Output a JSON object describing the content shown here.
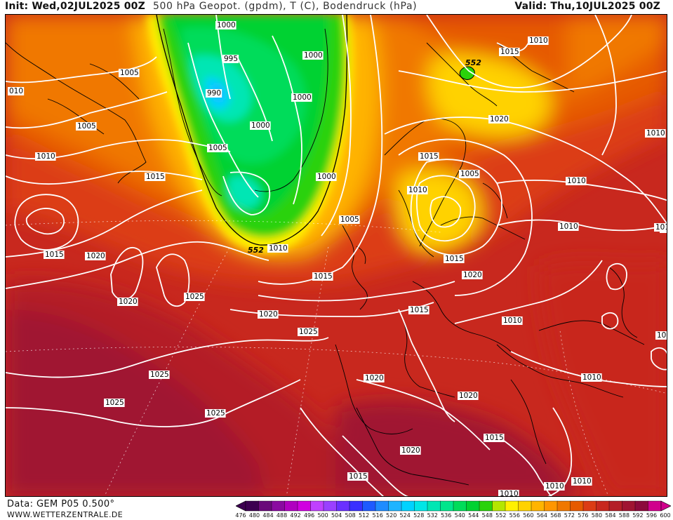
{
  "header": {
    "init": "Init: Wed,02JUL2025 00Z",
    "title": "500 hPa Geopot. (gpdm), T (C), Bodendruck (hPa)",
    "valid": "Valid: Thu,10JUL2025 00Z"
  },
  "footer": {
    "data_source": "Data: GEM P05 0.500°",
    "website": "WWW.WETTERZENTRALE.DE"
  },
  "legend": {
    "ticks": [
      "476",
      "480",
      "484",
      "488",
      "492",
      "496",
      "500",
      "504",
      "508",
      "512",
      "516",
      "520",
      "524",
      "528",
      "532",
      "536",
      "540",
      "544",
      "548",
      "552",
      "556",
      "560",
      "564",
      "568",
      "572",
      "576",
      "580",
      "584",
      "588",
      "592",
      "596",
      "600"
    ],
    "colors": [
      "#3c0050",
      "#6a0a7a",
      "#8a0aa0",
      "#b000c0",
      "#d000e0",
      "#c040ff",
      "#9a40ff",
      "#6a30ff",
      "#3a30ff",
      "#1e5aff",
      "#1e8cff",
      "#1eb4ff",
      "#00d2ff",
      "#00e6e6",
      "#00e6b4",
      "#00e68c",
      "#00dc5a",
      "#00d232",
      "#2ad20a",
      "#b4e600",
      "#fff000",
      "#ffd200",
      "#ffb400",
      "#ff9600",
      "#f07800",
      "#e65a00",
      "#dc3c14",
      "#c8281e",
      "#b41e28",
      "#a01432",
      "#8c0a3c",
      "#d0008c"
    ]
  },
  "isobar_labels": [
    {
      "t": "1000"
    },
    {
      "t": "995"
    },
    {
      "t": "990"
    },
    {
      "t": "1000"
    },
    {
      "t": "1000"
    },
    {
      "t": "1000"
    },
    {
      "t": "1005"
    },
    {
      "t": "1005"
    },
    {
      "t": "010"
    },
    {
      "t": "1005"
    },
    {
      "t": "1010"
    },
    {
      "t": "1015"
    },
    {
      "t": "1000"
    },
    {
      "t": "1005"
    },
    {
      "t": "552"
    },
    {
      "t": "1010"
    },
    {
      "t": "1015"
    },
    {
      "t": "1020"
    },
    {
      "t": "1025"
    },
    {
      "t": "1020"
    },
    {
      "t": "1020"
    },
    {
      "t": "1025"
    },
    {
      "t": "1025"
    },
    {
      "t": "1025"
    },
    {
      "t": "1025"
    },
    {
      "t": "1015"
    },
    {
      "t": "1010"
    },
    {
      "t": "552"
    },
    {
      "t": "1015"
    },
    {
      "t": "1020"
    },
    {
      "t": "1010"
    },
    {
      "t": "1015"
    },
    {
      "t": "1005"
    },
    {
      "t": "1010"
    },
    {
      "t": "1010"
    },
    {
      "t": "1015"
    },
    {
      "t": "1020"
    },
    {
      "t": "1015"
    },
    {
      "t": "1010"
    },
    {
      "t": "1015"
    },
    {
      "t": "1010"
    },
    {
      "t": "1010"
    },
    {
      "t": "1020"
    },
    {
      "t": "1020"
    },
    {
      "t": "1020"
    },
    {
      "t": "1015"
    },
    {
      "t": "1015"
    },
    {
      "t": "1010"
    },
    {
      "t": "1010"
    },
    {
      "t": "1010"
    },
    {
      "t": "1010"
    },
    {
      "t": "1010"
    }
  ]
}
